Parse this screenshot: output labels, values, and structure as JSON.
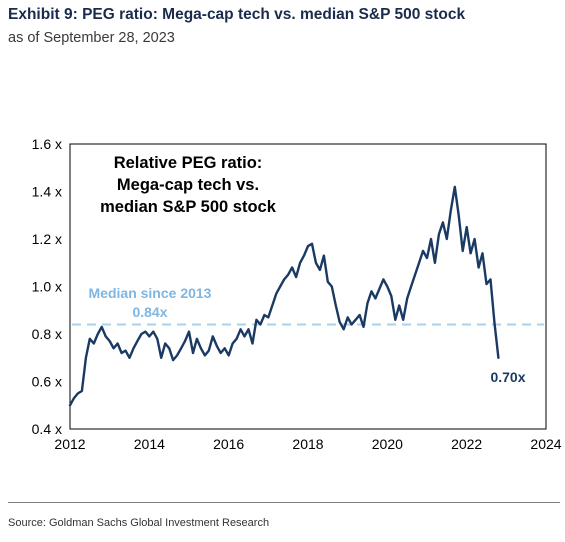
{
  "header": {
    "title": "Exhibit 9: PEG ratio: Mega-cap tech vs. median S&P 500 stock",
    "subtitle": "as of September 28, 2023"
  },
  "footer": {
    "source": "Source: Goldman Sachs Global Investment Research"
  },
  "colors": {
    "series": "#1b3a63",
    "median_line": "#a9d0ec",
    "median_text": "#7fb6e2",
    "axis_text": "#000000"
  },
  "chart_data": {
    "type": "line",
    "title": "Relative PEG ratio: Mega-cap tech vs. median S&P 500 stock",
    "title_lines": [
      "Relative PEG ratio:",
      "Mega-cap tech vs.",
      "median S&P 500 stock"
    ],
    "xlim": [
      2012,
      2024
    ],
    "ylim": [
      0.4,
      1.6
    ],
    "x_ticks": [
      2012,
      2014,
      2016,
      2018,
      2020,
      2022,
      2024
    ],
    "y_ticks": [
      0.4,
      0.6,
      0.8,
      1.0,
      1.2,
      1.4,
      1.6
    ],
    "y_tick_labels": [
      "0.4 x",
      "0.6 x",
      "0.8 x",
      "1.0 x",
      "1.2 x",
      "1.4 x",
      "1.6 x"
    ],
    "grid": false,
    "series": [
      {
        "x": [
          2012.0,
          2012.1,
          2012.2,
          2012.3,
          2012.4,
          2012.5,
          2012.6,
          2012.7,
          2012.8,
          2012.9,
          2013.0,
          2013.1,
          2013.2,
          2013.3,
          2013.4,
          2013.5,
          2013.6,
          2013.7,
          2013.8,
          2013.9,
          2014.0,
          2014.1,
          2014.2,
          2014.3,
          2014.4,
          2014.5,
          2014.6,
          2014.7,
          2014.8,
          2014.9,
          2015.0,
          2015.1,
          2015.2,
          2015.3,
          2015.4,
          2015.5,
          2015.6,
          2015.7,
          2015.8,
          2015.9,
          2016.0,
          2016.1,
          2016.2,
          2016.3,
          2016.4,
          2016.5,
          2016.6,
          2016.7,
          2016.8,
          2016.9,
          2017.0,
          2017.1,
          2017.2,
          2017.3,
          2017.4,
          2017.5,
          2017.6,
          2017.7,
          2017.8,
          2017.9,
          2018.0,
          2018.1,
          2018.2,
          2018.3,
          2018.4,
          2018.5,
          2018.6,
          2018.7,
          2018.8,
          2018.9,
          2019.0,
          2019.1,
          2019.2,
          2019.3,
          2019.4,
          2019.5,
          2019.6,
          2019.7,
          2019.8,
          2019.9,
          2020.0,
          2020.1,
          2020.2,
          2020.3,
          2020.4,
          2020.5,
          2020.6,
          2020.7,
          2020.8,
          2020.9,
          2021.0,
          2021.1,
          2021.2,
          2021.3,
          2021.4,
          2021.5,
          2021.6,
          2021.7,
          2021.8,
          2021.9,
          2022.0,
          2022.1,
          2022.2,
          2022.3,
          2022.4,
          2022.5,
          2022.6,
          2022.7,
          2022.8
        ],
        "y": [
          0.5,
          0.53,
          0.55,
          0.56,
          0.7,
          0.78,
          0.76,
          0.8,
          0.83,
          0.79,
          0.77,
          0.74,
          0.76,
          0.72,
          0.73,
          0.7,
          0.74,
          0.77,
          0.8,
          0.81,
          0.79,
          0.81,
          0.78,
          0.7,
          0.76,
          0.74,
          0.69,
          0.71,
          0.74,
          0.77,
          0.81,
          0.72,
          0.78,
          0.74,
          0.71,
          0.73,
          0.79,
          0.75,
          0.72,
          0.74,
          0.71,
          0.76,
          0.78,
          0.82,
          0.79,
          0.82,
          0.76,
          0.86,
          0.84,
          0.88,
          0.87,
          0.92,
          0.97,
          1.0,
          1.03,
          1.05,
          1.08,
          1.04,
          1.1,
          1.13,
          1.17,
          1.18,
          1.1,
          1.07,
          1.13,
          1.02,
          1.0,
          0.92,
          0.85,
          0.82,
          0.87,
          0.84,
          0.86,
          0.88,
          0.83,
          0.93,
          0.98,
          0.95,
          0.99,
          1.03,
          1.0,
          0.96,
          0.86,
          0.92,
          0.86,
          0.95,
          1.0,
          1.05,
          1.1,
          1.15,
          1.12,
          1.2,
          1.1,
          1.22,
          1.27,
          1.2,
          1.32,
          1.42,
          1.3,
          1.15,
          1.25,
          1.14,
          1.2,
          1.08,
          1.14,
          1.01,
          1.03,
          0.85,
          0.7
        ]
      }
    ],
    "reference_line": {
      "value": 0.84,
      "label_line1": "Median since 2013",
      "label_line2": "0.84x"
    },
    "end_label": "0.70x"
  }
}
